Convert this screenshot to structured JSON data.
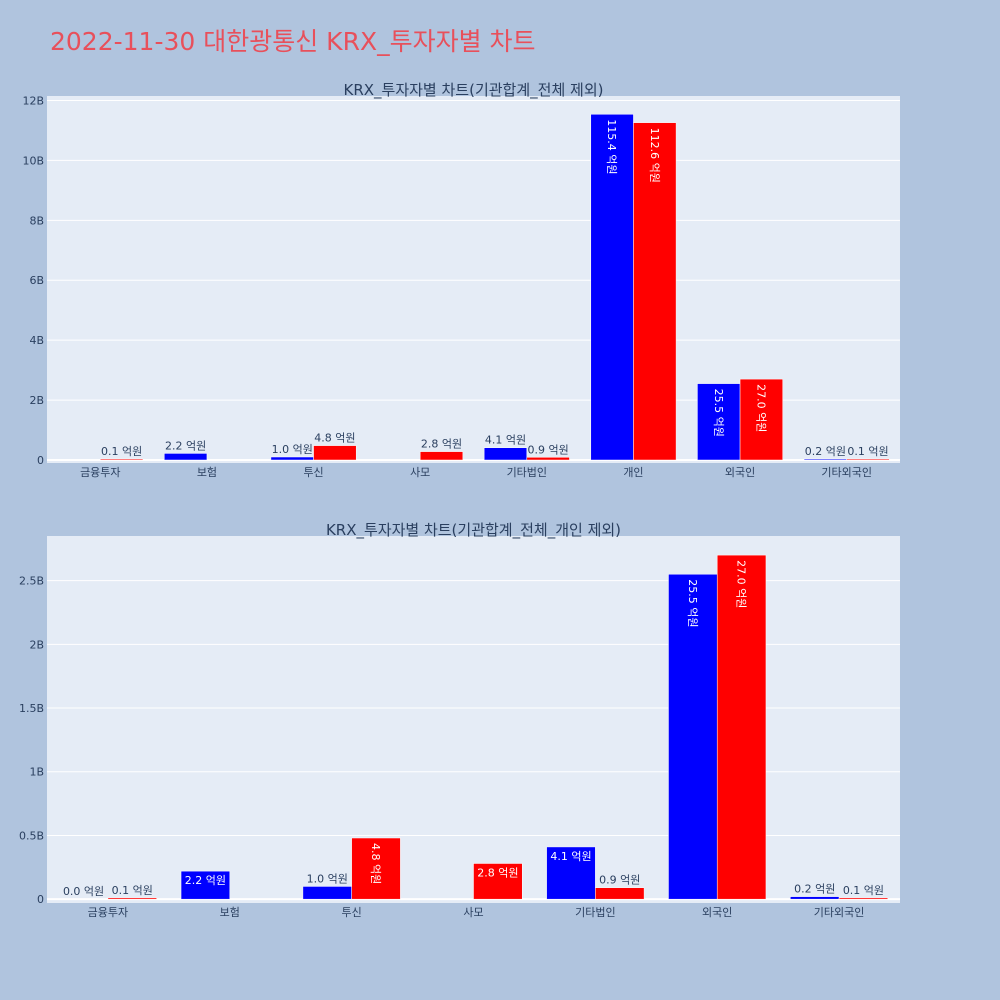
{
  "page": {
    "title": "2022-11-30 대한광통신 KRX_투자자별 차트"
  },
  "colors": {
    "background": "#b0c4de",
    "plot_background": "#e5ecf6",
    "series_blue": "#0000ff",
    "series_red": "#ff0000",
    "title_color": "#e8505b"
  },
  "chart_data": [
    {
      "type": "bar",
      "title": "KRX_투자자별 차트(기관합계_전체 제외)",
      "categories": [
        "금융투자",
        "보험",
        "투신",
        "사모",
        "기타법인",
        "개인",
        "외국인",
        "기타외국인"
      ],
      "series": [
        {
          "color": "#0000ff",
          "values": [
            0,
            220000000,
            100000000,
            0,
            410000000,
            11540000000,
            2550000000,
            20000000
          ],
          "labels": [
            "",
            "2.2 억원",
            "1.0 억원",
            "",
            "4.1 억원",
            "115.4 억원",
            "25.5 억원",
            "0.2 억원"
          ]
        },
        {
          "color": "#ff0000",
          "values": [
            10000000,
            0,
            480000000,
            280000000,
            90000000,
            11260000000,
            2700000000,
            10000000
          ],
          "labels": [
            "0.1 억원",
            "",
            "4.8 억원",
            "2.8 억원",
            "0.9 억원",
            "112.6 억원",
            "27.0 억원",
            "0.1 억원"
          ]
        }
      ],
      "yticks": [
        {
          "value": 0,
          "label": "0"
        },
        {
          "value": 2000000000,
          "label": "2B"
        },
        {
          "value": 4000000000,
          "label": "4B"
        },
        {
          "value": 6000000000,
          "label": "6B"
        },
        {
          "value": 8000000000,
          "label": "8B"
        },
        {
          "value": 10000000000,
          "label": "10B"
        },
        {
          "value": 12000000000,
          "label": "12B"
        }
      ],
      "ylim": [
        -100000000,
        12150000000
      ],
      "grid": true
    },
    {
      "type": "bar",
      "title": "KRX_투자자별 차트(기관합계_전체_개인 제외)",
      "categories": [
        "금융투자",
        "보험",
        "투신",
        "사모",
        "기타법인",
        "외국인",
        "기타외국인"
      ],
      "series": [
        {
          "color": "#0000ff",
          "values": [
            0,
            220000000,
            100000000,
            0,
            410000000,
            2550000000,
            20000000
          ],
          "labels": [
            "0.0 억원",
            "2.2 억원",
            "1.0 억원",
            "",
            "4.1 억원",
            "25.5 억원",
            "0.2 억원"
          ]
        },
        {
          "color": "#ff0000",
          "values": [
            10000000,
            0,
            480000000,
            280000000,
            90000000,
            2700000000,
            10000000
          ],
          "labels": [
            "0.1 억원",
            "",
            "4.8 억원",
            "2.8 억원",
            "0.9 억원",
            "27.0 억원",
            "0.1 억원"
          ]
        }
      ],
      "yticks": [
        {
          "value": 0,
          "label": "0"
        },
        {
          "value": 500000000,
          "label": "0.5B"
        },
        {
          "value": 1000000000,
          "label": "1B"
        },
        {
          "value": 1500000000,
          "label": "1.5B"
        },
        {
          "value": 2000000000,
          "label": "2B"
        },
        {
          "value": 2500000000,
          "label": "2.5B"
        }
      ],
      "ylim": [
        -30000000,
        2850000000
      ],
      "grid": true
    }
  ]
}
